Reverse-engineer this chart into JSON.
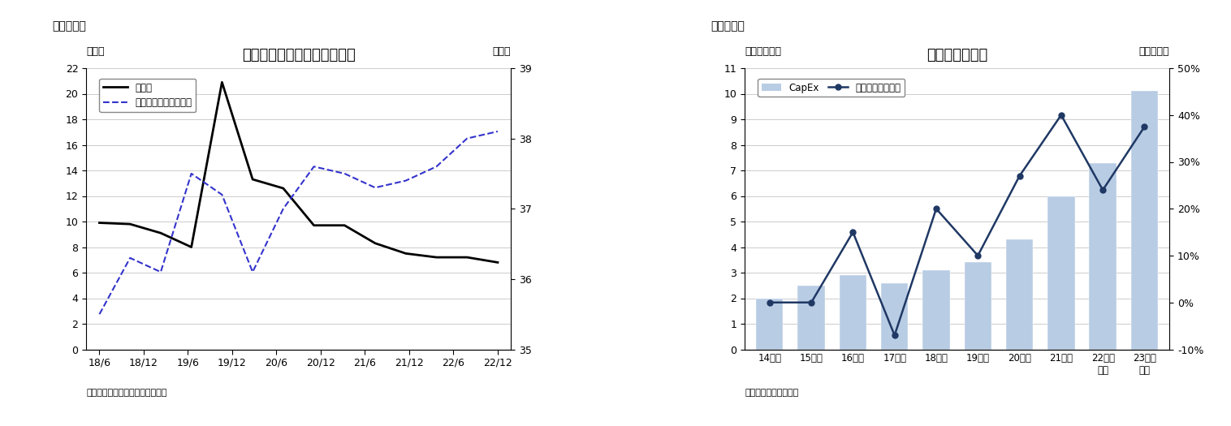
{
  "chart7": {
    "title": "都市部の失業率と労働参加率",
    "subtitle": "（図表７）",
    "ylabel_left": "（％）",
    "ylabel_right": "（％）",
    "source": "（資料）インド統計・計画実施省",
    "legend_unemployment": "失業率",
    "legend_participation": "労働参加率（右目盛）",
    "x_labels": [
      "18/6",
      "18/12",
      "19/6",
      "19/12",
      "20/6",
      "20/12",
      "21/6",
      "21/12",
      "22/6",
      "22/12"
    ],
    "unemployment": [
      9.9,
      9.8,
      9.1,
      8.0,
      20.9,
      13.3,
      12.6,
      9.7,
      9.7,
      8.3,
      7.5,
      7.2,
      7.2,
      6.8
    ],
    "participation_right": [
      35.5,
      36.3,
      36.1,
      37.5,
      37.2,
      36.1,
      37.0,
      37.6,
      37.5,
      37.3,
      37.4,
      37.6,
      38.0,
      38.1
    ],
    "ylim_left": [
      0,
      22
    ],
    "ylim_right": [
      35,
      39
    ],
    "yticks_left": [
      0,
      2,
      4,
      6,
      8,
      10,
      12,
      14,
      16,
      18,
      20,
      22
    ],
    "yticks_right": [
      35,
      36,
      37,
      38,
      39
    ],
    "unemployment_color": "#000000",
    "participation_color": "#3333cc",
    "bg_color": "#ffffff",
    "grid_color": "#cccccc"
  },
  "chart8": {
    "title": "政府の資本支出",
    "subtitle": "（図表８）",
    "ylabel_left": "（兆ルピー）",
    "ylabel_right": "（前年比）",
    "source": "（資料）インド財務省",
    "legend_capex": "CapEx",
    "legend_growth": "伸び率（右目盛）",
    "x_labels": [
      "14年度",
      "15年度",
      "16年度",
      "17年度",
      "18年度",
      "19年度",
      "20年度",
      "21年度",
      "22年度\n見込",
      "23年度\n予算"
    ],
    "capex": [
      2.0,
      2.5,
      2.9,
      2.6,
      3.1,
      3.4,
      4.3,
      6.0,
      7.3,
      10.1
    ],
    "growth_right": [
      0.0,
      0.0,
      0.15,
      -0.07,
      0.2,
      0.1,
      0.27,
      0.4,
      0.24,
      0.375
    ],
    "ylim_left": [
      0,
      11
    ],
    "ylim_right": [
      -0.1,
      0.5
    ],
    "yticks_left": [
      0,
      1,
      2,
      3,
      4,
      5,
      6,
      7,
      8,
      9,
      10,
      11
    ],
    "yticks_right": [
      -0.1,
      0.0,
      0.1,
      0.2,
      0.3,
      0.4,
      0.5
    ],
    "bar_color": "#b8cce4",
    "line_color": "#1f3864",
    "marker": "o",
    "bg_color": "#ffffff",
    "grid_color": "#cccccc"
  }
}
